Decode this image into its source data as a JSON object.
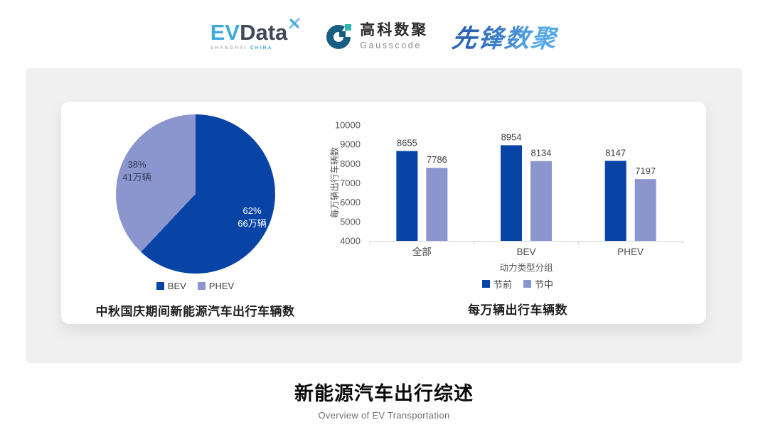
{
  "header": {
    "evdata": {
      "ev": "EV",
      "data": "Data",
      "sub_left": "SHANGHAI",
      "sub_right": "CHINA"
    },
    "gausscode": {
      "cn": "高科数聚",
      "en": "Gausscode"
    },
    "pioneer": {
      "text": "先锋数聚"
    }
  },
  "colors": {
    "series_dark_blue": "#0843a6",
    "series_light_blue": "#8c96ce",
    "gauss_mark_blue": "#175d84",
    "gauss_mark_teal": "#2cb6b6",
    "evdata_blue": "#3fa9dc",
    "panel_gray": "#f0f0f0"
  },
  "chart_data": [
    {
      "type": "pie",
      "title": "中秋国庆期间新能源汽车出行车辆数",
      "legend_position": "bottom",
      "slices": [
        {
          "name": "BEV",
          "pct": 62,
          "pct_label": "62%",
          "amount_label": "66万辆",
          "color": "#0843a6"
        },
        {
          "name": "PHEV",
          "pct": 38,
          "pct_label": "38%",
          "amount_label": "41万辆",
          "color": "#8c96ce"
        }
      ]
    },
    {
      "type": "bar",
      "title": "每万辆出行车辆数",
      "categories": [
        "全部",
        "BEV",
        "PHEV"
      ],
      "series": [
        {
          "name": "节前",
          "values": [
            8655,
            8954,
            8147
          ],
          "color": "#0843a6"
        },
        {
          "name": "节中",
          "values": [
            7786,
            8134,
            7197
          ],
          "color": "#8c96ce"
        }
      ],
      "ylabel": "每万辆出行车辆数",
      "xlabel": "动力类型分组",
      "ylim": [
        4000,
        10000
      ],
      "ytick_step": 1000,
      "grid": false,
      "legend_position": "bottom"
    }
  ],
  "footer": {
    "title": "新能源汽车出行综述",
    "subtitle": "Overview of EV Transportation"
  }
}
